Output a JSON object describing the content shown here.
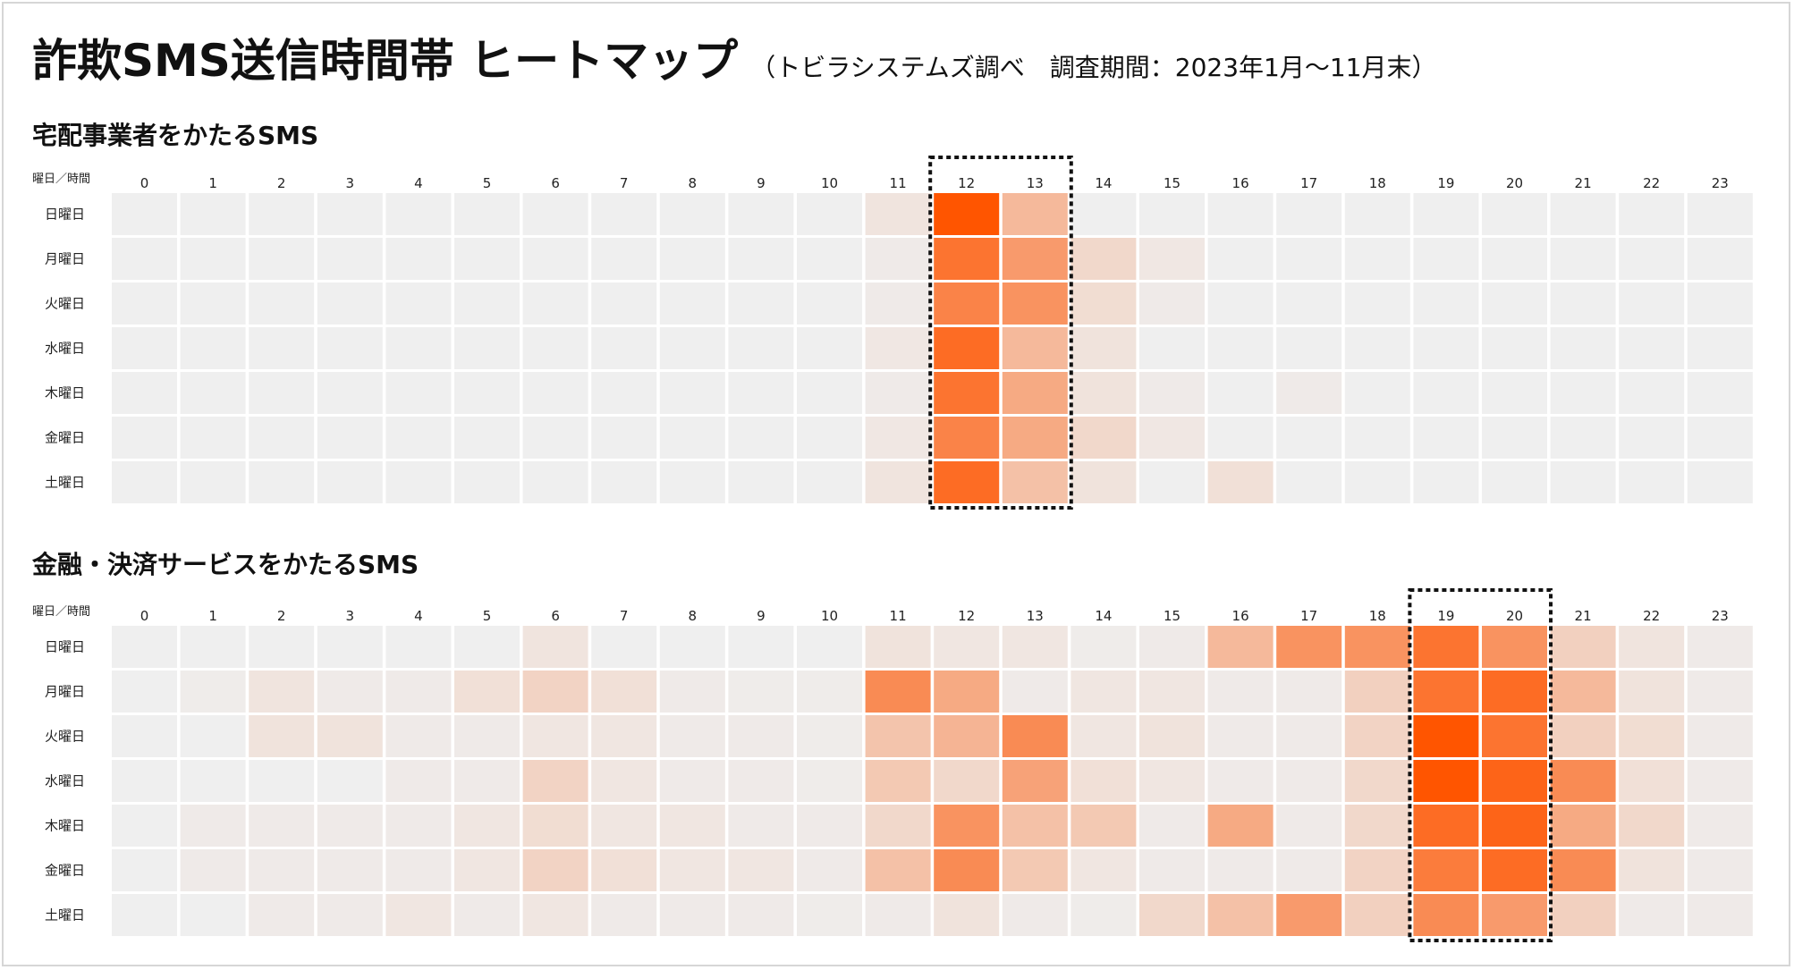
{
  "title": "詐欺SMS送信時間帯 ヒートマップ",
  "subtitle": "（トビラシステムズ調べ　調査期間：2023年1月〜11月末）",
  "colors": {
    "empty": "#efefef",
    "accent": "#ff5500",
    "grid_line": "#ffffff",
    "highlight_border": "#111111"
  },
  "chart_data": [
    {
      "type": "heatmap",
      "title": "宅配事業者をかたるSMS",
      "corner_label": "曜日／時間",
      "x": [
        "0",
        "1",
        "2",
        "3",
        "4",
        "5",
        "6",
        "7",
        "8",
        "9",
        "10",
        "11",
        "12",
        "13",
        "14",
        "15",
        "16",
        "17",
        "18",
        "19",
        "20",
        "21",
        "22",
        "23"
      ],
      "y": [
        "日曜日",
        "月曜日",
        "火曜日",
        "水曜日",
        "木曜日",
        "金曜日",
        "土曜日"
      ],
      "z": [
        [
          0,
          0,
          0,
          0,
          0,
          0,
          0,
          0,
          0,
          0,
          0,
          0.07,
          1.0,
          0.35,
          0,
          0,
          0,
          0,
          0,
          0,
          0,
          0,
          0,
          0
        ],
        [
          0,
          0,
          0,
          0,
          0,
          0,
          0,
          0,
          0,
          0,
          0,
          0.03,
          0.8,
          0.55,
          0.15,
          0.05,
          0,
          0,
          0,
          0,
          0,
          0,
          0,
          0
        ],
        [
          0,
          0,
          0,
          0,
          0,
          0,
          0,
          0,
          0,
          0,
          0,
          0.03,
          0.7,
          0.6,
          0.12,
          0.03,
          0,
          0,
          0,
          0,
          0,
          0,
          0,
          0
        ],
        [
          0,
          0,
          0,
          0,
          0,
          0,
          0,
          0,
          0,
          0,
          0,
          0.05,
          0.85,
          0.35,
          0.08,
          0,
          0,
          0,
          0,
          0,
          0,
          0,
          0,
          0
        ],
        [
          0,
          0,
          0,
          0,
          0,
          0,
          0,
          0,
          0,
          0,
          0,
          0.03,
          0.8,
          0.45,
          0.08,
          0.03,
          0,
          0.03,
          0,
          0,
          0,
          0,
          0,
          0
        ],
        [
          0,
          0,
          0,
          0,
          0,
          0,
          0,
          0,
          0,
          0,
          0,
          0.05,
          0.7,
          0.45,
          0.15,
          0.05,
          0,
          0,
          0,
          0,
          0,
          0,
          0,
          0
        ],
        [
          0,
          0,
          0,
          0,
          0,
          0,
          0,
          0,
          0,
          0,
          0,
          0.07,
          0.85,
          0.3,
          0.08,
          0,
          0.1,
          0,
          0,
          0,
          0,
          0,
          0,
          0
        ]
      ],
      "highlight_columns": [
        "12",
        "13"
      ]
    },
    {
      "type": "heatmap",
      "title": "金融・決済サービスをかたるSMS",
      "corner_label": "曜日／時間",
      "x": [
        "0",
        "1",
        "2",
        "3",
        "4",
        "5",
        "6",
        "7",
        "8",
        "9",
        "10",
        "11",
        "12",
        "13",
        "14",
        "15",
        "16",
        "17",
        "18",
        "19",
        "20",
        "21",
        "22",
        "23"
      ],
      "y": [
        "日曜日",
        "月曜日",
        "火曜日",
        "水曜日",
        "木曜日",
        "金曜日",
        "土曜日"
      ],
      "z": [
        [
          0,
          0,
          0,
          0,
          0,
          0,
          0.07,
          0,
          0,
          0,
          0,
          0.08,
          0.06,
          0.06,
          0.02,
          0.03,
          0.35,
          0.6,
          0.6,
          0.8,
          0.6,
          0.2,
          0.07,
          0.03
        ],
        [
          0,
          0.02,
          0.07,
          0.03,
          0.03,
          0.1,
          0.18,
          0.1,
          0.03,
          0.02,
          0.02,
          0.65,
          0.45,
          0.03,
          0.06,
          0.06,
          0.03,
          0.03,
          0.2,
          0.8,
          0.85,
          0.35,
          0.08,
          0.03
        ],
        [
          0,
          0,
          0.08,
          0.08,
          0.03,
          0.03,
          0.06,
          0.06,
          0.03,
          0.03,
          0.02,
          0.28,
          0.38,
          0.65,
          0.06,
          0.08,
          0.03,
          0.03,
          0.18,
          1.0,
          0.8,
          0.2,
          0.12,
          0.03
        ],
        [
          0,
          0,
          0,
          0,
          0.03,
          0.03,
          0.18,
          0.06,
          0.03,
          0.03,
          0.02,
          0.25,
          0.15,
          0.5,
          0.1,
          0.06,
          0.03,
          0.03,
          0.15,
          1.0,
          0.9,
          0.65,
          0.1,
          0.03
        ],
        [
          0,
          0.03,
          0.03,
          0.03,
          0.03,
          0.06,
          0.12,
          0.06,
          0.06,
          0.03,
          0.03,
          0.15,
          0.6,
          0.3,
          0.25,
          0.03,
          0.45,
          0.03,
          0.15,
          0.85,
          0.9,
          0.45,
          0.15,
          0.03
        ],
        [
          0,
          0.03,
          0.03,
          0.03,
          0.03,
          0.06,
          0.18,
          0.1,
          0.06,
          0.06,
          0.03,
          0.3,
          0.65,
          0.25,
          0.06,
          0.03,
          0.03,
          0.03,
          0.18,
          0.75,
          0.85,
          0.65,
          0.08,
          0.03
        ],
        [
          0,
          0,
          0.03,
          0.03,
          0.06,
          0.03,
          0.06,
          0.03,
          0.03,
          0.03,
          0.02,
          0.03,
          0.08,
          0.03,
          0.02,
          0.15,
          0.3,
          0.55,
          0.2,
          0.65,
          0.55,
          0.2,
          0.03,
          0.03
        ]
      ],
      "highlight_columns": [
        "19",
        "20"
      ]
    }
  ]
}
